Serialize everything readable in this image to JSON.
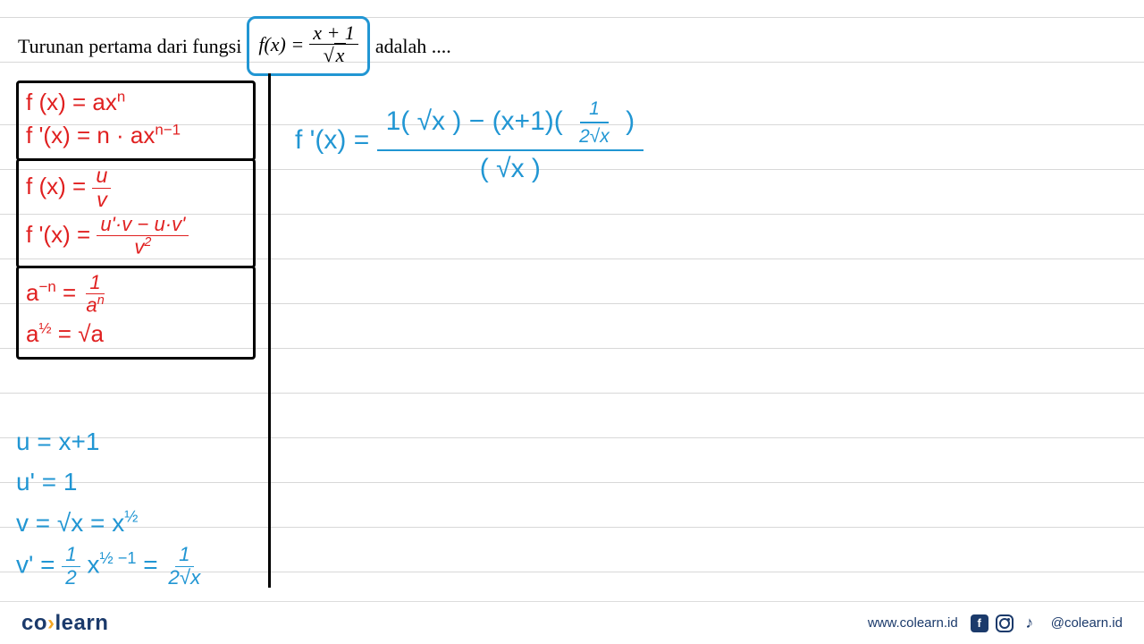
{
  "question": {
    "prefix": "Turunan pertama dari fungsi",
    "fx_label": "f(x) =",
    "numerator": "x + 1",
    "denominator_radicand": "x",
    "suffix": "adalah ....",
    "box_border_color": "#2196d3"
  },
  "rules": {
    "color": "#e02020",
    "box1": {
      "line1_lhs": "f (x) = ax",
      "line1_exp": "n",
      "line2_lhs": "f '(x) = n · ax",
      "line2_exp": "n−1"
    },
    "box2": {
      "line1": "f (x) =",
      "frac1_num": "u",
      "frac1_den": "v",
      "line2": "f '(x) =",
      "frac2_num": "u'·v − u·v'",
      "frac2_den": "v",
      "frac2_den_exp": "2"
    },
    "box3": {
      "line1_lhs": "a",
      "line1_exp": "−n",
      "line1_eq": " = ",
      "line1_frac_num": "1",
      "line1_frac_den": "a",
      "line1_frac_den_exp": "n",
      "line2_lhs": "a",
      "line2_exp": "½",
      "line2_rhs": " = √a"
    }
  },
  "blue_work": {
    "color": "#2196d3",
    "l1": "u = x+1",
    "l2": "u' = 1",
    "l3_a": "v = √x = x",
    "l3_exp": "½",
    "l4_a": "v' = ",
    "l4_frac1_num": "1",
    "l4_frac1_den": "2",
    "l4_b": " x",
    "l4_exp": "½ −1",
    "l4_c": " = ",
    "l4_frac2_num": "1",
    "l4_frac2_den": "2√x"
  },
  "right_work": {
    "lhs": "f '(x) = ",
    "num": "1( √x ) − (x+1)(",
    "num_inner_frac_num": "1",
    "num_inner_frac_den": "2√x",
    "num_close": ")",
    "den": "( √x )"
  },
  "footer": {
    "logo_co": "co",
    "logo_learn": "learn",
    "url": "www.colearn.id",
    "handle": "@colearn.id"
  }
}
